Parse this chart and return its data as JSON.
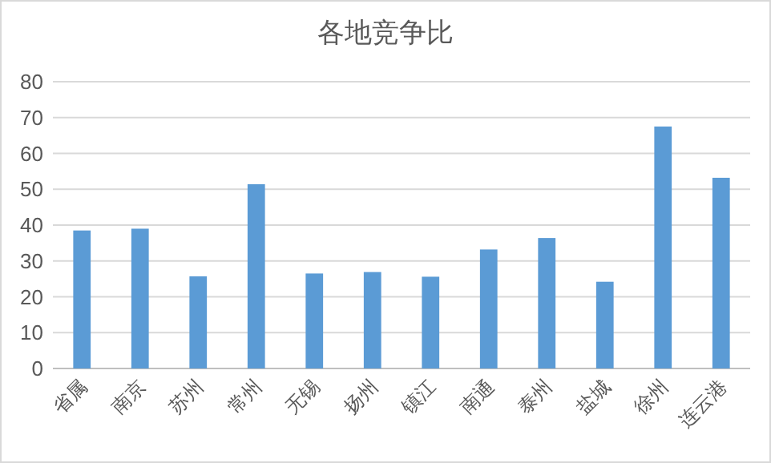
{
  "chart_data": {
    "type": "bar",
    "title": "各地竞争比",
    "categories": [
      "省属",
      "南京",
      "苏州",
      "常州",
      "无锡",
      "扬州",
      "镇江",
      "南通",
      "泰州",
      "盐城",
      "徐州",
      "连云港"
    ],
    "values": [
      38.5,
      39.0,
      25.7,
      51.4,
      26.5,
      26.9,
      25.6,
      33.2,
      36.4,
      24.2,
      67.5,
      53.2
    ],
    "color": "#5b9bd5",
    "ylim": [
      0,
      80
    ],
    "yticks": [
      0,
      10,
      20,
      30,
      40,
      50,
      60,
      70,
      80
    ],
    "grid": "y"
  }
}
